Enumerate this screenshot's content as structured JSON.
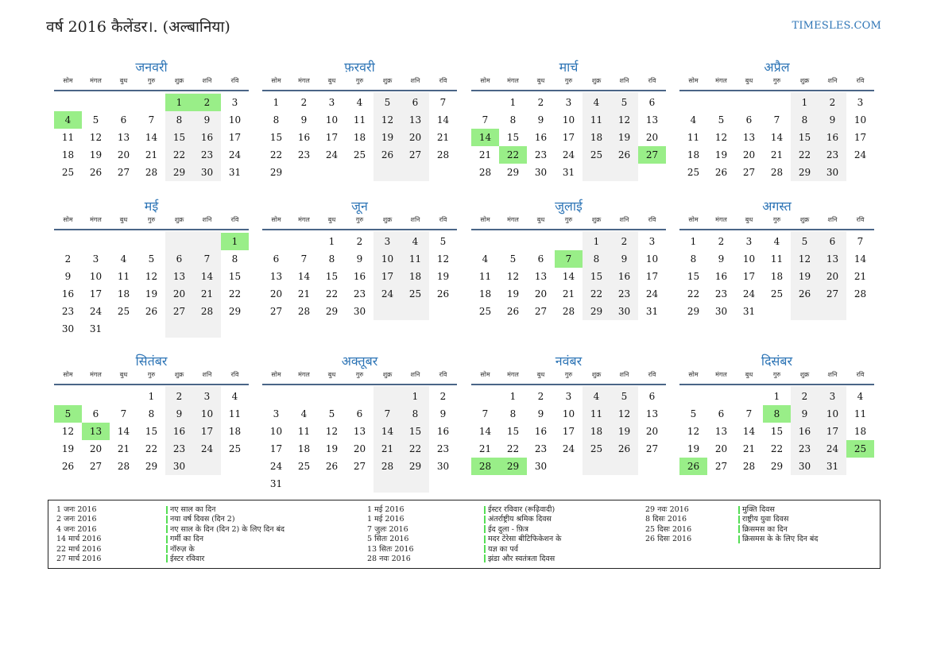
{
  "header": {
    "title": "वर्ष 2016 कैलेंडर।. (अल्बानिया)",
    "brand": "TIMESLES.COM"
  },
  "weekdays": [
    "सोम",
    "मंगल",
    "बुध",
    "गुरु",
    "शुक्र",
    "शनि",
    "रवि"
  ],
  "months": [
    {
      "name": "जनवरी",
      "offset": 4,
      "days": 31,
      "holidays": [
        1,
        2,
        4
      ]
    },
    {
      "name": "फ़रवरी",
      "offset": 0,
      "days": 29,
      "holidays": []
    },
    {
      "name": "मार्च",
      "offset": 1,
      "days": 31,
      "holidays": [
        14,
        22,
        27
      ]
    },
    {
      "name": "अप्रैल",
      "offset": 4,
      "days": 30,
      "holidays": []
    },
    {
      "name": "मई",
      "offset": 6,
      "days": 31,
      "holidays": [
        1
      ]
    },
    {
      "name": "जून",
      "offset": 2,
      "days": 30,
      "holidays": []
    },
    {
      "name": "जुलाई",
      "offset": 4,
      "days": 31,
      "holidays": [
        7
      ]
    },
    {
      "name": "अगस्त",
      "offset": 0,
      "days": 31,
      "holidays": []
    },
    {
      "name": "सितंबर",
      "offset": 3,
      "days": 30,
      "holidays": [
        5,
        13
      ]
    },
    {
      "name": "अक्तूबर",
      "offset": 5,
      "days": 31,
      "holidays": []
    },
    {
      "name": "नवंबर",
      "offset": 1,
      "days": 30,
      "holidays": [
        28,
        29
      ]
    },
    {
      "name": "दिसंबर",
      "offset": 3,
      "days": 31,
      "holidays": [
        8,
        25,
        26
      ]
    }
  ],
  "legend": {
    "columns": [
      {
        "dates": [
          "1 जनः 2016",
          "2 जनः 2016",
          "4 जनः 2016",
          "14 मार्च 2016",
          "22 मार्च 2016",
          "27 मार्च 2016"
        ],
        "names": [
          "नए साल का दिन",
          "नया वर्ष दिवस (दिन 2)",
          "नए साल के दिन (दिन 2) के लिए दिन बंद",
          "गर्मी का दिन",
          "नॉरुज़ के",
          "ईस्टर रविवार"
        ]
      },
      {
        "dates": [
          "1 मई 2016",
          "1 मई 2016",
          "7 जुलः 2016",
          "5 सितः 2016",
          "13 सितः 2016",
          "28 नवः 2016"
        ],
        "names": [
          "ईस्टर रविवार (रूढ़िवादी)",
          "अंतर्राष्ट्रीय श्रमिक दिवस",
          "ईद दुला - फ़ित्र",
          "मदर टेरेसा बीटिफिकेशन के",
          "यज्ञ का पर्व",
          "झंडा और स्वतंत्रता दिवस"
        ]
      },
      {
        "dates": [
          "29 नवः 2016",
          "8 दिसः 2016",
          "25 दिसः 2016",
          "26 दिसः 2016"
        ],
        "names": [
          "मुक्ति दिवस",
          "राष्ट्रीय युवा दिवस",
          "क्रिसमस का दिन",
          "क्रिसमस के के लिए दिन बंद"
        ]
      }
    ]
  }
}
